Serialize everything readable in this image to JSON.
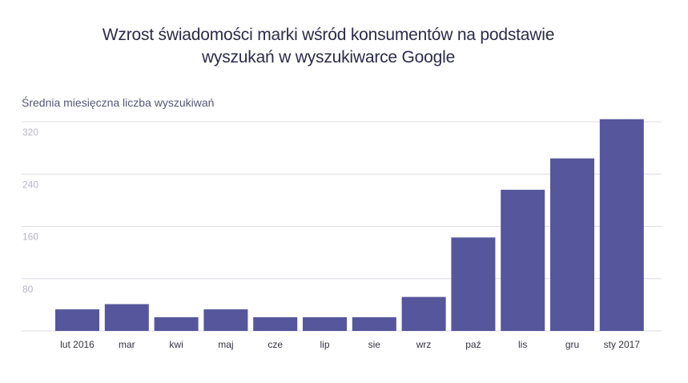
{
  "chart_data": {
    "type": "bar",
    "title_line1": "Wzrost świadomości marki wśród konsumentów na podstawie",
    "title_line2": "wyszukań w wyszukiwarce Google",
    "ylabel": "Średnia miesięczna liczba wyszukiwań",
    "xlabel": "",
    "ylim": [
      0,
      320
    ],
    "yticks": [
      80,
      160,
      240,
      320
    ],
    "grid": true,
    "categories": [
      "lut 2016",
      "mar",
      "kwi",
      "maj",
      "cze",
      "lip",
      "sie",
      "wrz",
      "paź",
      "lis",
      "gru",
      "sty 2017"
    ],
    "values": [
      33,
      41,
      21,
      33,
      21,
      21,
      21,
      52,
      143,
      216,
      264,
      324
    ],
    "bar_color": "#56569c",
    "grid_color": "#dcdce6"
  }
}
